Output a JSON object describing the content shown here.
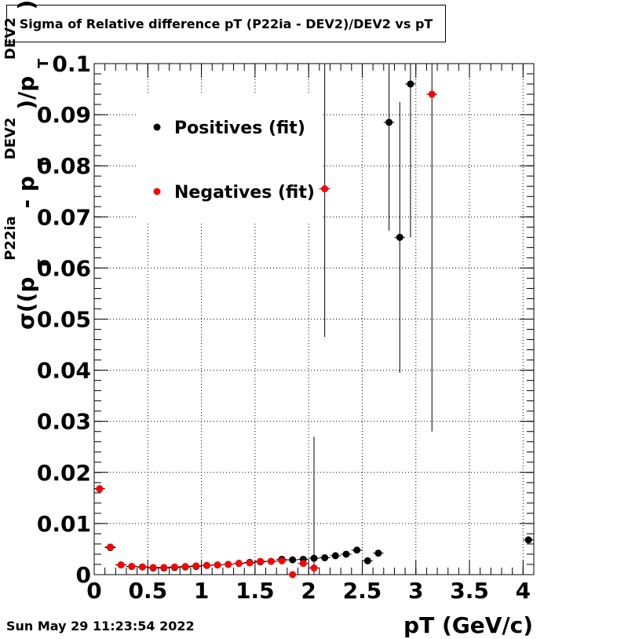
{
  "title": "Sigma of Relative difference pT (P22ia - DEV2)/DEV2 vs pT",
  "timestamp": "Sun May 29 11:23:54 2022",
  "chart_data": {
    "type": "scatter",
    "xlabel": "pT (GeV/c)",
    "ylabel_parts": {
      "sigma": "σ((p",
      "sub1": "T",
      "sup1": "P22ia",
      "mid": " - p",
      "sub2": "T",
      "sup2": "DEV2",
      "end": ")/p",
      "sub3": "T",
      "sup3": "DEV2",
      "close": ")"
    },
    "xlim": [
      0,
      4.1
    ],
    "ylim": [
      0,
      0.1
    ],
    "grid": true,
    "legend_position": "top-left",
    "x_ticks": [
      0,
      0.5,
      1,
      1.5,
      2,
      2.5,
      3,
      3.5,
      4
    ],
    "x_tick_labels": [
      "0",
      "0.5",
      "1",
      "1.5",
      "2",
      "2.5",
      "3",
      "3.5",
      "4"
    ],
    "y_ticks": [
      0,
      0.01,
      0.02,
      0.03,
      0.04,
      0.05,
      0.06,
      0.07,
      0.08,
      0.09,
      0.1
    ],
    "y_tick_labels": [
      "0",
      "0.01",
      "0.02",
      "0.03",
      "0.04",
      "0.05",
      "0.06",
      "0.07",
      "0.08",
      "0.09",
      "0.1"
    ],
    "series": [
      {
        "name": "Positives (fit)",
        "color": "#000000",
        "points": [
          {
            "x": 0.05,
            "y": 0.0168,
            "err": 0.0004
          },
          {
            "x": 0.15,
            "y": 0.0053,
            "err": 0.0003
          },
          {
            "x": 0.25,
            "y": 0.0019,
            "err": 0.0002
          },
          {
            "x": 0.35,
            "y": 0.0016,
            "err": 0.0002
          },
          {
            "x": 0.45,
            "y": 0.0015,
            "err": 0.0002
          },
          {
            "x": 0.55,
            "y": 0.0013,
            "err": 0.0002
          },
          {
            "x": 0.65,
            "y": 0.0013,
            "err": 0.0002
          },
          {
            "x": 0.75,
            "y": 0.0014,
            "err": 0.0002
          },
          {
            "x": 0.85,
            "y": 0.0015,
            "err": 0.0002
          },
          {
            "x": 0.95,
            "y": 0.0016,
            "err": 0.0002
          },
          {
            "x": 1.05,
            "y": 0.0018,
            "err": 0.0002
          },
          {
            "x": 1.15,
            "y": 0.0019,
            "err": 0.0002
          },
          {
            "x": 1.25,
            "y": 0.002,
            "err": 0.0002
          },
          {
            "x": 1.35,
            "y": 0.0022,
            "err": 0.0002
          },
          {
            "x": 1.45,
            "y": 0.0024,
            "err": 0.0002
          },
          {
            "x": 1.55,
            "y": 0.0025,
            "err": 0.0002
          },
          {
            "x": 1.65,
            "y": 0.0026,
            "err": 0.0002
          },
          {
            "x": 1.75,
            "y": 0.003,
            "err": 0.0003
          },
          {
            "x": 1.85,
            "y": 0.0029,
            "err": 0.0003
          },
          {
            "x": 1.95,
            "y": 0.003,
            "err": 0.0003
          },
          {
            "x": 2.05,
            "y": 0.0032,
            "err": 0.0003
          },
          {
            "x": 2.15,
            "y": 0.0033,
            "err": 0.0003
          },
          {
            "x": 2.25,
            "y": 0.0037,
            "err": 0.0003
          },
          {
            "x": 2.35,
            "y": 0.004,
            "err": 0.0003
          },
          {
            "x": 2.45,
            "y": 0.0048,
            "err": 0.0004
          },
          {
            "x": 2.55,
            "y": 0.0027,
            "err": 0.0003
          },
          {
            "x": 2.65,
            "y": 0.0042,
            "err": 0.0004
          },
          {
            "x": 2.75,
            "y": 0.0885,
            "err": 0.0212
          },
          {
            "x": 2.85,
            "y": 0.066,
            "err": 0.0265
          },
          {
            "x": 2.95,
            "y": 0.096,
            "err": 0.03
          },
          {
            "x": 4.05,
            "y": 0.0068,
            "err": 0.0004
          }
        ]
      },
      {
        "name": "Negatives (fit)",
        "color": "#ff0000",
        "points": [
          {
            "x": 0.05,
            "y": 0.0168,
            "err": 0.0004
          },
          {
            "x": 0.15,
            "y": 0.0054,
            "err": 0.0003
          },
          {
            "x": 0.25,
            "y": 0.0019,
            "err": 0.0002
          },
          {
            "x": 0.35,
            "y": 0.0016,
            "err": 0.0002
          },
          {
            "x": 0.45,
            "y": 0.0015,
            "err": 0.0002
          },
          {
            "x": 0.55,
            "y": 0.0014,
            "err": 0.0002
          },
          {
            "x": 0.65,
            "y": 0.0014,
            "err": 0.0002
          },
          {
            "x": 0.75,
            "y": 0.0015,
            "err": 0.0002
          },
          {
            "x": 0.85,
            "y": 0.0016,
            "err": 0.0002
          },
          {
            "x": 0.95,
            "y": 0.0017,
            "err": 0.0002
          },
          {
            "x": 1.05,
            "y": 0.0018,
            "err": 0.0002
          },
          {
            "x": 1.15,
            "y": 0.0019,
            "err": 0.0002
          },
          {
            "x": 1.25,
            "y": 0.002,
            "err": 0.0002
          },
          {
            "x": 1.35,
            "y": 0.0022,
            "err": 0.0002
          },
          {
            "x": 1.45,
            "y": 0.0023,
            "err": 0.0002
          },
          {
            "x": 1.55,
            "y": 0.0026,
            "err": 0.0002
          },
          {
            "x": 1.65,
            "y": 0.0026,
            "err": 0.0002
          },
          {
            "x": 1.75,
            "y": 0.0027,
            "err": 0.0003
          },
          {
            "x": 1.85,
            "y": 0.0,
            "err": 0.0003
          },
          {
            "x": 1.95,
            "y": 0.0022,
            "err": 0.0003
          },
          {
            "x": 2.05,
            "y": 0.0013,
            "err": 0.0257
          },
          {
            "x": 2.15,
            "y": 0.0755,
            "err": 0.029
          },
          {
            "x": 3.15,
            "y": 0.094,
            "err": 0.066
          }
        ]
      }
    ]
  }
}
